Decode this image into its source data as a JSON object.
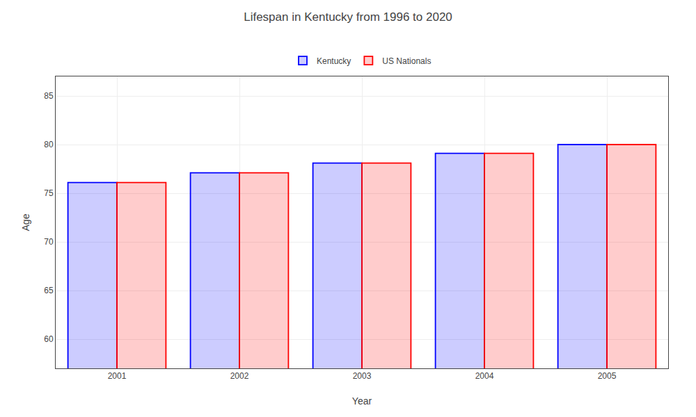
{
  "chart_data": {
    "type": "bar",
    "title": "Lifespan in Kentucky from 1996 to 2020",
    "xlabel": "Year",
    "ylabel": "Age",
    "categories": [
      "2001",
      "2002",
      "2003",
      "2004",
      "2005"
    ],
    "series": [
      {
        "name": "Kentucky",
        "color": "#0000ff",
        "values": [
          76.1,
          77.1,
          78.1,
          79.1,
          80.0
        ]
      },
      {
        "name": "US Nationals",
        "color": "#ff0000",
        "values": [
          76.1,
          77.1,
          78.1,
          79.1,
          80.0
        ]
      }
    ],
    "ylim": [
      57,
      87
    ],
    "yticks": [
      60,
      65,
      70,
      75,
      80,
      85
    ],
    "grid": true,
    "legend": "top"
  }
}
